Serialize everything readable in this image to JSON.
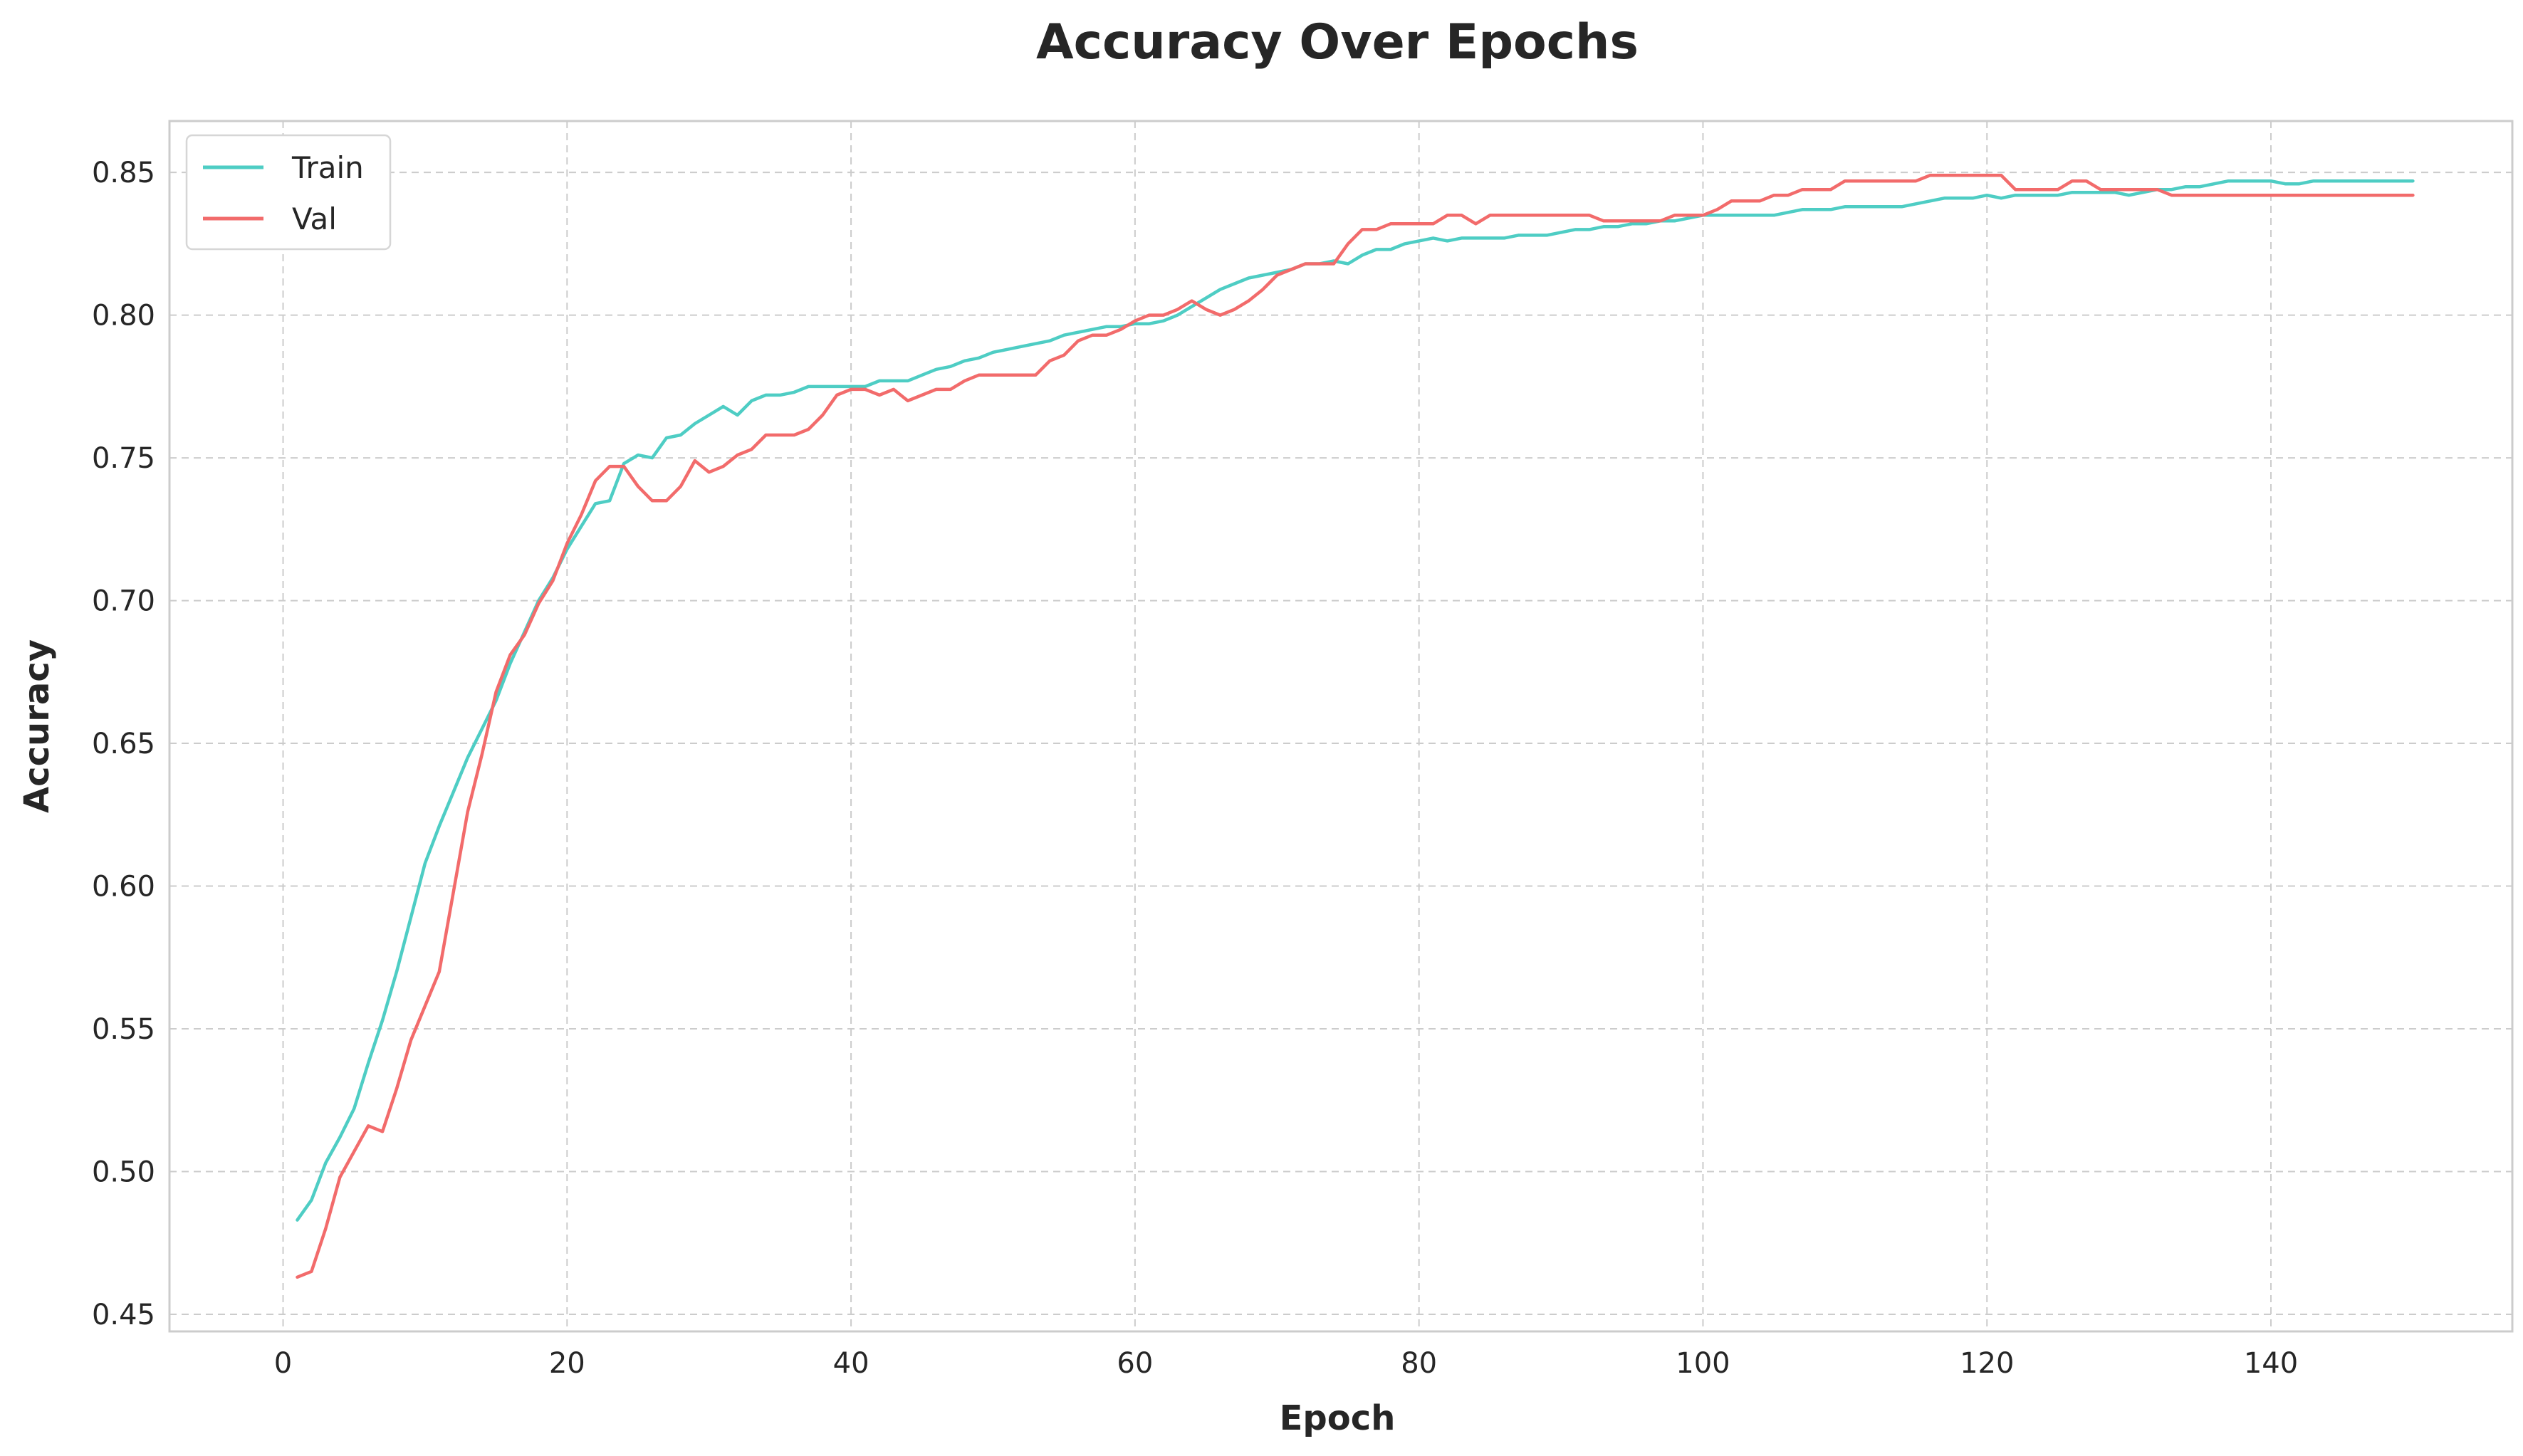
{
  "chart_data": {
    "type": "line",
    "title": "Accuracy Over Epochs",
    "xlabel": "Epoch",
    "ylabel": "Accuracy",
    "xlim": [
      -8,
      157
    ],
    "ylim": [
      0.444,
      0.868
    ],
    "xticks": [
      0,
      20,
      40,
      60,
      80,
      100,
      120,
      140
    ],
    "xtick_labels": [
      "0",
      "20",
      "40",
      "60",
      "80",
      "100",
      "120",
      "140"
    ],
    "yticks": [
      0.45,
      0.5,
      0.55,
      0.6,
      0.65,
      0.7,
      0.75,
      0.8,
      0.85
    ],
    "ytick_labels": [
      "0.45",
      "0.50",
      "0.55",
      "0.60",
      "0.65",
      "0.70",
      "0.75",
      "0.80",
      "0.85"
    ],
    "grid": true,
    "legend_position": "top-left",
    "series": [
      {
        "name": "Train",
        "color": "#4ecdc4",
        "points": [
          [
            1,
            0.483
          ],
          [
            2,
            0.49
          ],
          [
            3,
            0.503
          ],
          [
            4,
            0.512
          ],
          [
            5,
            0.522
          ],
          [
            6,
            0.538
          ],
          [
            7,
            0.553
          ],
          [
            8,
            0.57
          ],
          [
            9,
            0.589
          ],
          [
            10,
            0.608
          ],
          [
            11,
            0.621
          ],
          [
            12,
            0.633
          ],
          [
            13,
            0.645
          ],
          [
            14,
            0.655
          ],
          [
            15,
            0.665
          ],
          [
            16,
            0.678
          ],
          [
            17,
            0.689
          ],
          [
            18,
            0.7
          ],
          [
            19,
            0.708
          ],
          [
            20,
            0.718
          ],
          [
            21,
            0.726
          ],
          [
            22,
            0.734
          ],
          [
            23,
            0.735
          ],
          [
            24,
            0.748
          ],
          [
            25,
            0.751
          ],
          [
            26,
            0.75
          ],
          [
            27,
            0.757
          ],
          [
            28,
            0.758
          ],
          [
            29,
            0.762
          ],
          [
            30,
            0.765
          ],
          [
            31,
            0.768
          ],
          [
            32,
            0.765
          ],
          [
            33,
            0.77
          ],
          [
            34,
            0.772
          ],
          [
            35,
            0.772
          ],
          [
            36,
            0.773
          ],
          [
            37,
            0.775
          ],
          [
            38,
            0.775
          ],
          [
            39,
            0.775
          ],
          [
            40,
            0.775
          ],
          [
            41,
            0.775
          ],
          [
            42,
            0.777
          ],
          [
            43,
            0.777
          ],
          [
            44,
            0.777
          ],
          [
            45,
            0.779
          ],
          [
            46,
            0.781
          ],
          [
            47,
            0.782
          ],
          [
            48,
            0.784
          ],
          [
            49,
            0.785
          ],
          [
            50,
            0.787
          ],
          [
            51,
            0.788
          ],
          [
            52,
            0.789
          ],
          [
            53,
            0.79
          ],
          [
            54,
            0.791
          ],
          [
            55,
            0.793
          ],
          [
            56,
            0.794
          ],
          [
            57,
            0.795
          ],
          [
            58,
            0.796
          ],
          [
            59,
            0.796
          ],
          [
            60,
            0.797
          ],
          [
            61,
            0.797
          ],
          [
            62,
            0.798
          ],
          [
            63,
            0.8
          ],
          [
            64,
            0.803
          ],
          [
            65,
            0.806
          ],
          [
            66,
            0.809
          ],
          [
            67,
            0.811
          ],
          [
            68,
            0.813
          ],
          [
            69,
            0.814
          ],
          [
            70,
            0.815
          ],
          [
            71,
            0.816
          ],
          [
            72,
            0.818
          ],
          [
            73,
            0.818
          ],
          [
            74,
            0.819
          ],
          [
            75,
            0.818
          ],
          [
            76,
            0.821
          ],
          [
            77,
            0.823
          ],
          [
            78,
            0.823
          ],
          [
            79,
            0.825
          ],
          [
            80,
            0.826
          ],
          [
            81,
            0.827
          ],
          [
            82,
            0.826
          ],
          [
            83,
            0.827
          ],
          [
            84,
            0.827
          ],
          [
            85,
            0.827
          ],
          [
            86,
            0.827
          ],
          [
            87,
            0.828
          ],
          [
            88,
            0.828
          ],
          [
            89,
            0.828
          ],
          [
            90,
            0.829
          ],
          [
            91,
            0.83
          ],
          [
            92,
            0.83
          ],
          [
            93,
            0.831
          ],
          [
            94,
            0.831
          ],
          [
            95,
            0.832
          ],
          [
            96,
            0.832
          ],
          [
            97,
            0.833
          ],
          [
            98,
            0.833
          ],
          [
            99,
            0.834
          ],
          [
            100,
            0.835
          ],
          [
            101,
            0.835
          ],
          [
            102,
            0.835
          ],
          [
            103,
            0.835
          ],
          [
            104,
            0.835
          ],
          [
            105,
            0.835
          ],
          [
            106,
            0.836
          ],
          [
            107,
            0.837
          ],
          [
            108,
            0.837
          ],
          [
            109,
            0.837
          ],
          [
            110,
            0.838
          ],
          [
            111,
            0.838
          ],
          [
            112,
            0.838
          ],
          [
            113,
            0.838
          ],
          [
            114,
            0.838
          ],
          [
            115,
            0.839
          ],
          [
            116,
            0.84
          ],
          [
            117,
            0.841
          ],
          [
            118,
            0.841
          ],
          [
            119,
            0.841
          ],
          [
            120,
            0.842
          ],
          [
            121,
            0.841
          ],
          [
            122,
            0.842
          ],
          [
            123,
            0.842
          ],
          [
            124,
            0.842
          ],
          [
            125,
            0.842
          ],
          [
            126,
            0.843
          ],
          [
            127,
            0.843
          ],
          [
            128,
            0.843
          ],
          [
            129,
            0.843
          ],
          [
            130,
            0.842
          ],
          [
            131,
            0.843
          ],
          [
            132,
            0.844
          ],
          [
            133,
            0.844
          ],
          [
            134,
            0.845
          ],
          [
            135,
            0.845
          ],
          [
            136,
            0.846
          ],
          [
            137,
            0.847
          ],
          [
            138,
            0.847
          ],
          [
            139,
            0.847
          ],
          [
            140,
            0.847
          ],
          [
            141,
            0.846
          ],
          [
            142,
            0.846
          ],
          [
            143,
            0.847
          ],
          [
            144,
            0.847
          ],
          [
            145,
            0.847
          ],
          [
            146,
            0.847
          ],
          [
            147,
            0.847
          ],
          [
            148,
            0.847
          ],
          [
            149,
            0.847
          ],
          [
            150,
            0.847
          ]
        ]
      },
      {
        "name": "Val",
        "color": "#f26b6b",
        "points": [
          [
            1,
            0.463
          ],
          [
            2,
            0.465
          ],
          [
            3,
            0.48
          ],
          [
            4,
            0.498
          ],
          [
            5,
            0.507
          ],
          [
            6,
            0.516
          ],
          [
            7,
            0.514
          ],
          [
            8,
            0.529
          ],
          [
            9,
            0.546
          ],
          [
            10,
            0.558
          ],
          [
            11,
            0.57
          ],
          [
            12,
            0.598
          ],
          [
            13,
            0.626
          ],
          [
            14,
            0.646
          ],
          [
            15,
            0.668
          ],
          [
            16,
            0.681
          ],
          [
            17,
            0.688
          ],
          [
            18,
            0.699
          ],
          [
            19,
            0.707
          ],
          [
            20,
            0.72
          ],
          [
            21,
            0.73
          ],
          [
            22,
            0.742
          ],
          [
            23,
            0.747
          ],
          [
            24,
            0.747
          ],
          [
            25,
            0.74
          ],
          [
            26,
            0.735
          ],
          [
            27,
            0.735
          ],
          [
            28,
            0.74
          ],
          [
            29,
            0.749
          ],
          [
            30,
            0.745
          ],
          [
            31,
            0.747
          ],
          [
            32,
            0.751
          ],
          [
            33,
            0.753
          ],
          [
            34,
            0.758
          ],
          [
            35,
            0.758
          ],
          [
            36,
            0.758
          ],
          [
            37,
            0.76
          ],
          [
            38,
            0.765
          ],
          [
            39,
            0.772
          ],
          [
            40,
            0.774
          ],
          [
            41,
            0.774
          ],
          [
            42,
            0.772
          ],
          [
            43,
            0.774
          ],
          [
            44,
            0.77
          ],
          [
            45,
            0.772
          ],
          [
            46,
            0.774
          ],
          [
            47,
            0.774
          ],
          [
            48,
            0.777
          ],
          [
            49,
            0.779
          ],
          [
            50,
            0.779
          ],
          [
            51,
            0.779
          ],
          [
            52,
            0.779
          ],
          [
            53,
            0.779
          ],
          [
            54,
            0.784
          ],
          [
            55,
            0.786
          ],
          [
            56,
            0.791
          ],
          [
            57,
            0.793
          ],
          [
            58,
            0.793
          ],
          [
            59,
            0.795
          ],
          [
            60,
            0.798
          ],
          [
            61,
            0.8
          ],
          [
            62,
            0.8
          ],
          [
            63,
            0.802
          ],
          [
            64,
            0.805
          ],
          [
            65,
            0.802
          ],
          [
            66,
            0.8
          ],
          [
            67,
            0.802
          ],
          [
            68,
            0.805
          ],
          [
            69,
            0.809
          ],
          [
            70,
            0.814
          ],
          [
            71,
            0.816
          ],
          [
            72,
            0.818
          ],
          [
            73,
            0.818
          ],
          [
            74,
            0.818
          ],
          [
            75,
            0.825
          ],
          [
            76,
            0.83
          ],
          [
            77,
            0.83
          ],
          [
            78,
            0.832
          ],
          [
            79,
            0.832
          ],
          [
            80,
            0.832
          ],
          [
            81,
            0.832
          ],
          [
            82,
            0.835
          ],
          [
            83,
            0.835
          ],
          [
            84,
            0.832
          ],
          [
            85,
            0.835
          ],
          [
            86,
            0.835
          ],
          [
            87,
            0.835
          ],
          [
            88,
            0.835
          ],
          [
            89,
            0.835
          ],
          [
            90,
            0.835
          ],
          [
            91,
            0.835
          ],
          [
            92,
            0.835
          ],
          [
            93,
            0.833
          ],
          [
            94,
            0.833
          ],
          [
            95,
            0.833
          ],
          [
            96,
            0.833
          ],
          [
            97,
            0.833
          ],
          [
            98,
            0.835
          ],
          [
            99,
            0.835
          ],
          [
            100,
            0.835
          ],
          [
            101,
            0.837
          ],
          [
            102,
            0.84
          ],
          [
            103,
            0.84
          ],
          [
            104,
            0.84
          ],
          [
            105,
            0.842
          ],
          [
            106,
            0.842
          ],
          [
            107,
            0.844
          ],
          [
            108,
            0.844
          ],
          [
            109,
            0.844
          ],
          [
            110,
            0.847
          ],
          [
            111,
            0.847
          ],
          [
            112,
            0.847
          ],
          [
            113,
            0.847
          ],
          [
            114,
            0.847
          ],
          [
            115,
            0.847
          ],
          [
            116,
            0.849
          ],
          [
            117,
            0.849
          ],
          [
            118,
            0.849
          ],
          [
            119,
            0.849
          ],
          [
            120,
            0.849
          ],
          [
            121,
            0.849
          ],
          [
            122,
            0.844
          ],
          [
            123,
            0.844
          ],
          [
            124,
            0.844
          ],
          [
            125,
            0.844
          ],
          [
            126,
            0.847
          ],
          [
            127,
            0.847
          ],
          [
            128,
            0.844
          ],
          [
            129,
            0.844
          ],
          [
            130,
            0.844
          ],
          [
            131,
            0.844
          ],
          [
            132,
            0.844
          ],
          [
            133,
            0.842
          ],
          [
            134,
            0.842
          ],
          [
            135,
            0.842
          ],
          [
            136,
            0.842
          ],
          [
            137,
            0.842
          ],
          [
            138,
            0.842
          ],
          [
            139,
            0.842
          ],
          [
            140,
            0.842
          ],
          [
            141,
            0.842
          ],
          [
            142,
            0.842
          ],
          [
            143,
            0.842
          ],
          [
            144,
            0.842
          ],
          [
            145,
            0.842
          ],
          [
            146,
            0.842
          ],
          [
            147,
            0.842
          ],
          [
            148,
            0.842
          ],
          [
            149,
            0.842
          ],
          [
            150,
            0.842
          ]
        ]
      }
    ]
  }
}
